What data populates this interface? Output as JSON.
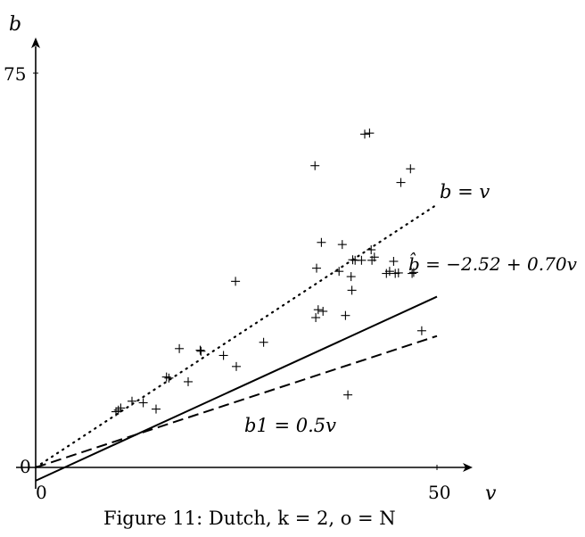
{
  "chart_data": {
    "type": "scatter",
    "title": "",
    "caption": "Figure 11: Dutch, k = 2, o = N",
    "xlabel": "v",
    "ylabel": "b",
    "xlim": [
      0,
      50
    ],
    "ylim": [
      0,
      75
    ],
    "x_ticks": [
      "0",
      "50"
    ],
    "y_ticks": [
      "0",
      "75"
    ],
    "grid": false,
    "series": [
      {
        "style": "markers-plus",
        "points": [
          {
            "x": 10.0,
            "y": 10.6
          },
          {
            "x": 10.3,
            "y": 10.9
          },
          {
            "x": 10.6,
            "y": 11.3
          },
          {
            "x": 12.0,
            "y": 12.6
          },
          {
            "x": 13.4,
            "y": 12.3
          },
          {
            "x": 15.0,
            "y": 11.1
          },
          {
            "x": 16.3,
            "y": 17.2
          },
          {
            "x": 16.6,
            "y": 17.0
          },
          {
            "x": 17.9,
            "y": 22.6
          },
          {
            "x": 19.0,
            "y": 16.3
          },
          {
            "x": 20.5,
            "y": 22.3
          },
          {
            "x": 20.6,
            "y": 22.1
          },
          {
            "x": 23.4,
            "y": 21.3
          },
          {
            "x": 25.0,
            "y": 19.2
          },
          {
            "x": 24.9,
            "y": 35.4
          },
          {
            "x": 28.4,
            "y": 23.8
          },
          {
            "x": 34.8,
            "y": 57.4
          },
          {
            "x": 34.9,
            "y": 28.5
          },
          {
            "x": 35.2,
            "y": 30.0
          },
          {
            "x": 35.0,
            "y": 37.9
          },
          {
            "x": 35.6,
            "y": 42.8
          },
          {
            "x": 35.8,
            "y": 29.7
          },
          {
            "x": 37.8,
            "y": 37.3
          },
          {
            "x": 38.6,
            "y": 28.9
          },
          {
            "x": 38.2,
            "y": 42.4
          },
          {
            "x": 38.9,
            "y": 13.8
          },
          {
            "x": 39.3,
            "y": 36.3
          },
          {
            "x": 39.4,
            "y": 33.7
          },
          {
            "x": 39.5,
            "y": 39.5
          },
          {
            "x": 39.8,
            "y": 39.4
          },
          {
            "x": 40.6,
            "y": 39.4
          },
          {
            "x": 41.0,
            "y": 63.4
          },
          {
            "x": 41.6,
            "y": 63.6
          },
          {
            "x": 41.9,
            "y": 39.4
          },
          {
            "x": 42.2,
            "y": 40.0
          },
          {
            "x": 41.8,
            "y": 41.4
          },
          {
            "x": 43.7,
            "y": 36.9
          },
          {
            "x": 44.1,
            "y": 37.3
          },
          {
            "x": 44.6,
            "y": 39.2
          },
          {
            "x": 44.8,
            "y": 36.9
          },
          {
            "x": 45.2,
            "y": 37.0
          },
          {
            "x": 45.5,
            "y": 54.2
          },
          {
            "x": 46.7,
            "y": 56.8
          },
          {
            "x": 46.9,
            "y": 36.9
          },
          {
            "x": 47.1,
            "y": 37.1
          },
          {
            "x": 48.1,
            "y": 26.0
          }
        ]
      }
    ],
    "lines": [
      {
        "style": "dotted",
        "equation": "b = v",
        "label": "b = v",
        "x_range": [
          0,
          50
        ],
        "intercept": 0,
        "slope": 1.0
      },
      {
        "style": "solid",
        "equation": "b̂ = −2.52 + 0.70v",
        "label": "b̂ = −2.52 + 0.70v",
        "x_range": [
          0,
          50
        ],
        "intercept": -2.52,
        "slope": 0.7
      },
      {
        "style": "dashed",
        "equation": "b1 = 0.5v",
        "label": "b1 = 0.5v",
        "x_range": [
          0,
          50
        ],
        "intercept": 0,
        "slope": 0.5
      }
    ]
  }
}
